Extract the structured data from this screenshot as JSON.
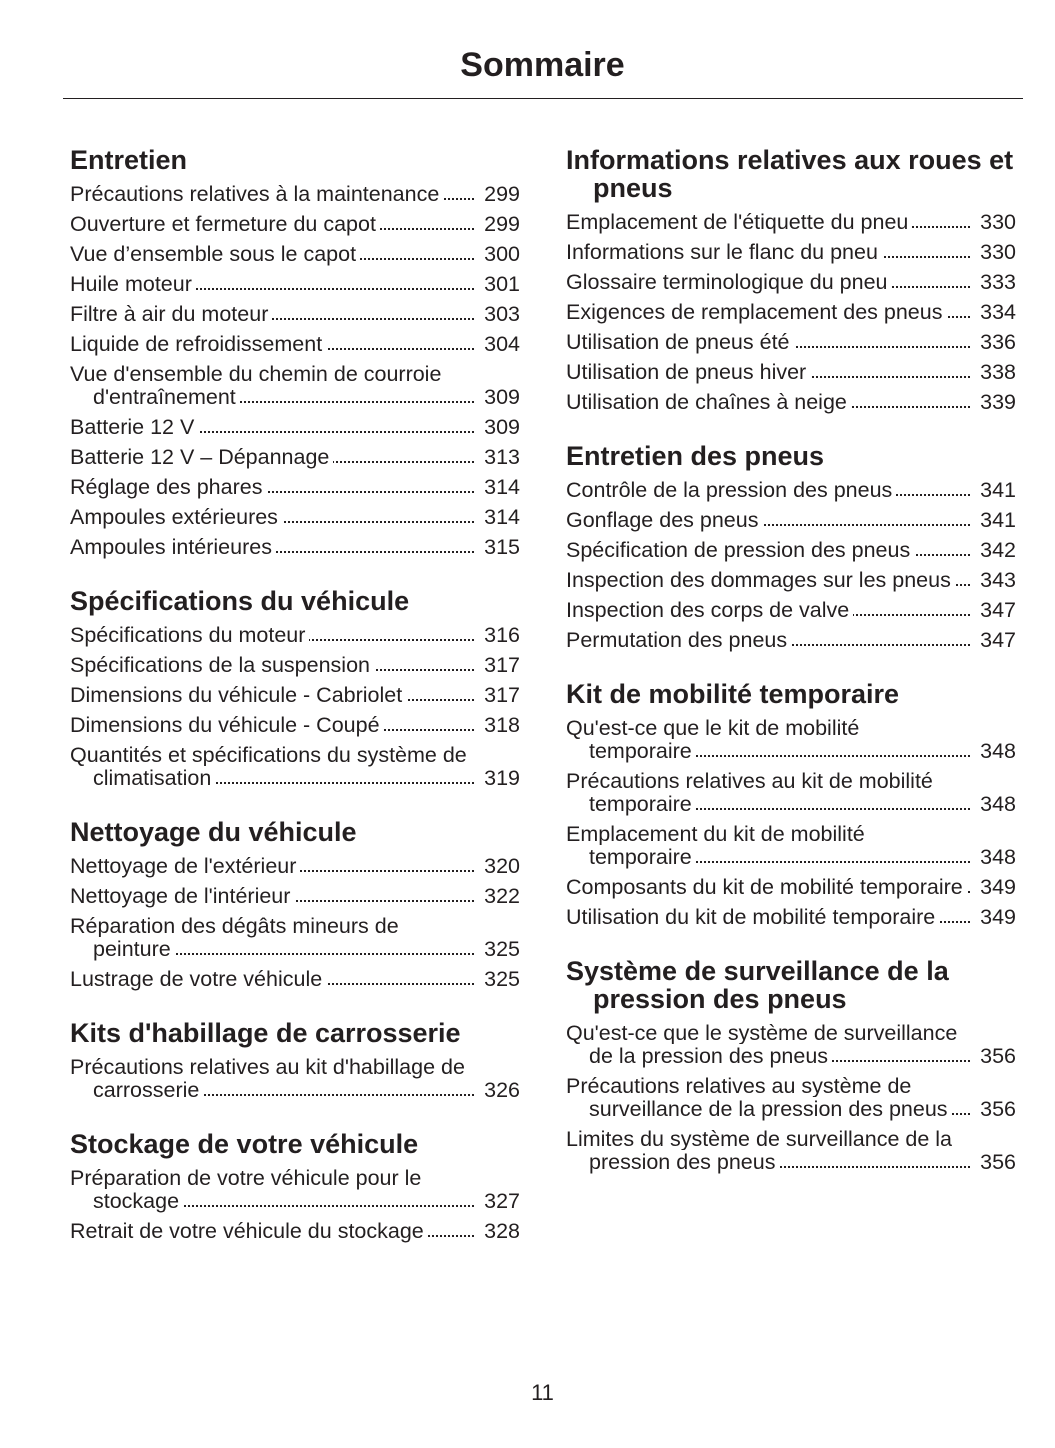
{
  "header": {
    "title": "Sommaire"
  },
  "columns": [
    {
      "sections": [
        {
          "heading": "Entretien",
          "entries": [
            {
              "text": "Précautions relatives à la maintenance",
              "page": 299
            },
            {
              "text": "Ouverture et fermeture du capot",
              "page": 299
            },
            {
              "text": "Vue d’ensemble sous le capot",
              "page": 300
            },
            {
              "text": "Huile moteur",
              "page": 301
            },
            {
              "text": "Filtre à air du moteur",
              "page": 303
            },
            {
              "text": "Liquide de refroidissement",
              "page": 304
            },
            {
              "text": "Vue d'ensemble du chemin de courroie d'entraînement",
              "page": 309
            },
            {
              "text": "Batterie 12 V",
              "page": 309
            },
            {
              "text": "Batterie 12 V – Dépannage",
              "page": 313
            },
            {
              "text": "Réglage des phares",
              "page": 314
            },
            {
              "text": "Ampoules extérieures",
              "page": 314
            },
            {
              "text": "Ampoules intérieures",
              "page": 315
            }
          ]
        },
        {
          "heading": "Spécifications du véhicule",
          "entries": [
            {
              "text": "Spécifications du moteur",
              "page": 316
            },
            {
              "text": "Spécifications de la suspension",
              "page": 317
            },
            {
              "text": "Dimensions du véhicule - Cabriolet",
              "page": 317
            },
            {
              "text": "Dimensions du véhicule - Coupé",
              "page": 318
            },
            {
              "text": "Quantités et spécifications du système de climatisation",
              "page": 319
            }
          ]
        },
        {
          "heading": "Nettoyage du véhicule",
          "entries": [
            {
              "text": "Nettoyage de l'extérieur",
              "page": 320
            },
            {
              "text": "Nettoyage de l'intérieur",
              "page": 322
            },
            {
              "text": "Réparation des dégâts mineurs de peinture",
              "page": 325
            },
            {
              "text": "Lustrage de votre véhicule",
              "page": 325
            }
          ]
        },
        {
          "heading": "Kits d'habillage de carrosserie",
          "entries": [
            {
              "text": "Précautions relatives au kit d'habillage de carrosserie",
              "page": 326
            }
          ]
        },
        {
          "heading": "Stockage de votre véhicule",
          "entries": [
            {
              "text": "Préparation de votre véhicule pour le stockage",
              "page": 327
            },
            {
              "text": "Retrait de votre véhicule du stockage",
              "page": 328
            }
          ]
        }
      ]
    },
    {
      "sections": [
        {
          "heading": "Informations relatives aux roues et pneus",
          "entries": [
            {
              "text": "Emplacement de l'étiquette du pneu",
              "page": 330
            },
            {
              "text": "Informations sur le flanc du pneu",
              "page": 330
            },
            {
              "text": "Glossaire terminologique du pneu",
              "page": 333
            },
            {
              "text": "Exigences de remplacement des pneus",
              "page": 334
            },
            {
              "text": "Utilisation de pneus été",
              "page": 336
            },
            {
              "text": "Utilisation de pneus hiver",
              "page": 338
            },
            {
              "text": "Utilisation de chaînes à neige",
              "page": 339
            }
          ]
        },
        {
          "heading": "Entretien des pneus",
          "entries": [
            {
              "text": "Contrôle de la pression des pneus",
              "page": 341
            },
            {
              "text": "Gonflage des pneus",
              "page": 341
            },
            {
              "text": "Spécification de pression des pneus",
              "page": 342
            },
            {
              "text": "Inspection des dommages sur les pneus",
              "page": 343
            },
            {
              "text": "Inspection des corps de valve",
              "page": 347
            },
            {
              "text": "Permutation des pneus",
              "page": 347
            }
          ]
        },
        {
          "heading": "Kit de mobilité temporaire",
          "entries": [
            {
              "text": "Qu'est-ce que le kit de mobilité temporaire",
              "page": 348
            },
            {
              "text": "Précautions relatives au kit de mobilité temporaire",
              "page": 348
            },
            {
              "text": "Emplacement du kit de mobilité temporaire",
              "page": 348
            },
            {
              "text": "Composants du kit de mobilité temporaire",
              "page": 349
            },
            {
              "text": "Utilisation du kit de mobilité temporaire",
              "page": 349
            }
          ]
        },
        {
          "heading": "Système de surveillance de la pression des pneus",
          "entries": [
            {
              "text": "Qu'est-ce que le système de surveillance de la pression des pneus",
              "page": 356
            },
            {
              "text": "Précautions relatives au système de surveillance de la pression des pneus",
              "page": 356
            },
            {
              "text": "Limites du système de surveillance de la pression des pneus",
              "page": 356
            }
          ]
        }
      ]
    }
  ],
  "footer": {
    "page_number": 11
  }
}
